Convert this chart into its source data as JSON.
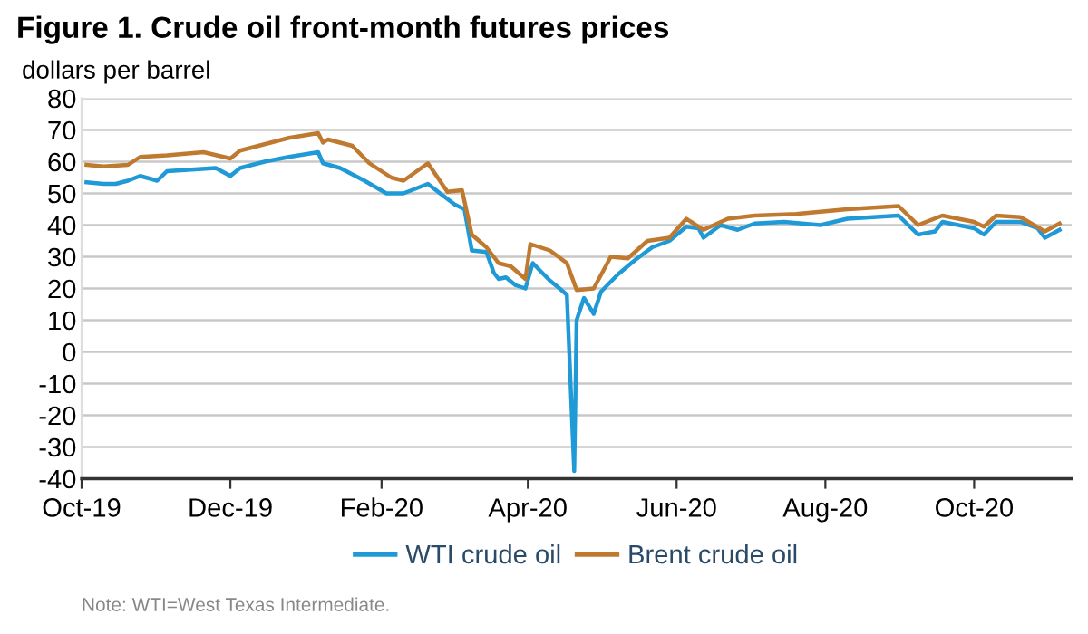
{
  "chart_data": {
    "type": "line",
    "title": "Figure 1. Crude oil front-month futures prices",
    "ylabel": "dollars per barrel",
    "annotations": [
      "Note: WTI=West Texas Intermediate."
    ],
    "xlim": [
      "2019-10-01",
      "2020-11-10"
    ],
    "xticks": [
      {
        "value": "2019-10-01",
        "label": "Oct-19"
      },
      {
        "value": "2019-12-01",
        "label": "Dec-19"
      },
      {
        "value": "2020-02-01",
        "label": "Feb-20"
      },
      {
        "value": "2020-04-01",
        "label": "Apr-20"
      },
      {
        "value": "2020-06-01",
        "label": "Jun-20"
      },
      {
        "value": "2020-08-01",
        "label": "Aug-20"
      },
      {
        "value": "2020-10-01",
        "label": "Oct-20"
      }
    ],
    "ylim": [
      -40,
      80
    ],
    "yticks": [
      -40,
      -30,
      -20,
      -10,
      0,
      10,
      20,
      30,
      40,
      50,
      60,
      70,
      80
    ],
    "grid": "y",
    "legend": "bottom",
    "series": [
      {
        "name": "WTI crude oil",
        "color": "#1f9ad6",
        "x": [
          "2019-10-03",
          "2019-10-10",
          "2019-10-15",
          "2019-10-20",
          "2019-10-25",
          "2019-11-01",
          "2019-11-05",
          "2019-11-15",
          "2019-11-25",
          "2019-12-01",
          "2019-12-05",
          "2019-12-15",
          "2019-12-25",
          "2020-01-06",
          "2020-01-08",
          "2020-01-15",
          "2020-01-25",
          "2020-02-03",
          "2020-02-10",
          "2020-02-20",
          "2020-02-25",
          "2020-03-02",
          "2020-03-06",
          "2020-03-09",
          "2020-03-15",
          "2020-03-18",
          "2020-03-20",
          "2020-03-23",
          "2020-03-27",
          "2020-03-31",
          "2020-04-03",
          "2020-04-10",
          "2020-04-14",
          "2020-04-17",
          "2020-04-20",
          "2020-04-21",
          "2020-04-24",
          "2020-04-28",
          "2020-05-01",
          "2020-05-08",
          "2020-05-15",
          "2020-05-22",
          "2020-05-29",
          "2020-06-05",
          "2020-06-10",
          "2020-06-12",
          "2020-06-19",
          "2020-06-26",
          "2020-07-03",
          "2020-07-15",
          "2020-07-30",
          "2020-08-10",
          "2020-08-31",
          "2020-09-08",
          "2020-09-15",
          "2020-09-18",
          "2020-10-01",
          "2020-10-05",
          "2020-10-10",
          "2020-10-20",
          "2020-10-27",
          "2020-10-30",
          "2020-11-05"
        ],
        "values": [
          53.5,
          53,
          53,
          54,
          55.5,
          54,
          57,
          57.5,
          58,
          55.5,
          58,
          60,
          61.5,
          63,
          59.5,
          58,
          54,
          50,
          50,
          53,
          50,
          46.5,
          45,
          32,
          31.5,
          25,
          23,
          23.5,
          21,
          20,
          28,
          22.5,
          20,
          18,
          -37.6,
          10,
          17,
          12,
          19,
          24.5,
          29,
          33,
          35,
          39.5,
          39,
          36,
          40,
          38.5,
          40.5,
          41,
          40,
          42,
          43,
          37,
          38,
          41,
          39,
          37,
          41,
          41,
          39,
          36,
          38.5
        ]
      },
      {
        "name": "Brent crude oil",
        "color": "#c07a30",
        "x": [
          "2019-10-03",
          "2019-10-10",
          "2019-10-20",
          "2019-10-25",
          "2019-11-05",
          "2019-11-20",
          "2019-12-01",
          "2019-12-05",
          "2019-12-15",
          "2019-12-25",
          "2020-01-06",
          "2020-01-08",
          "2020-01-10",
          "2020-01-20",
          "2020-01-27",
          "2020-02-05",
          "2020-02-10",
          "2020-02-20",
          "2020-02-28",
          "2020-03-05",
          "2020-03-09",
          "2020-03-15",
          "2020-03-20",
          "2020-03-25",
          "2020-03-31",
          "2020-04-02",
          "2020-04-10",
          "2020-04-17",
          "2020-04-21",
          "2020-04-28",
          "2020-05-05",
          "2020-05-12",
          "2020-05-20",
          "2020-05-29",
          "2020-06-05",
          "2020-06-12",
          "2020-06-22",
          "2020-07-03",
          "2020-07-20",
          "2020-08-10",
          "2020-08-31",
          "2020-09-08",
          "2020-09-18",
          "2020-10-01",
          "2020-10-05",
          "2020-10-10",
          "2020-10-20",
          "2020-10-30",
          "2020-11-05"
        ],
        "values": [
          59,
          58.5,
          59,
          61.5,
          62,
          63,
          61,
          63.5,
          65.5,
          67.5,
          69,
          66,
          67,
          65,
          59.5,
          55,
          54,
          59.5,
          50.5,
          51,
          37,
          33,
          28,
          27,
          23,
          34,
          32,
          28,
          19.5,
          20,
          30,
          29.5,
          35,
          36,
          42,
          38.5,
          42,
          43,
          43.5,
          45,
          46,
          40,
          43,
          41,
          39.5,
          43,
          42.5,
          38,
          40.5
        ]
      }
    ]
  }
}
